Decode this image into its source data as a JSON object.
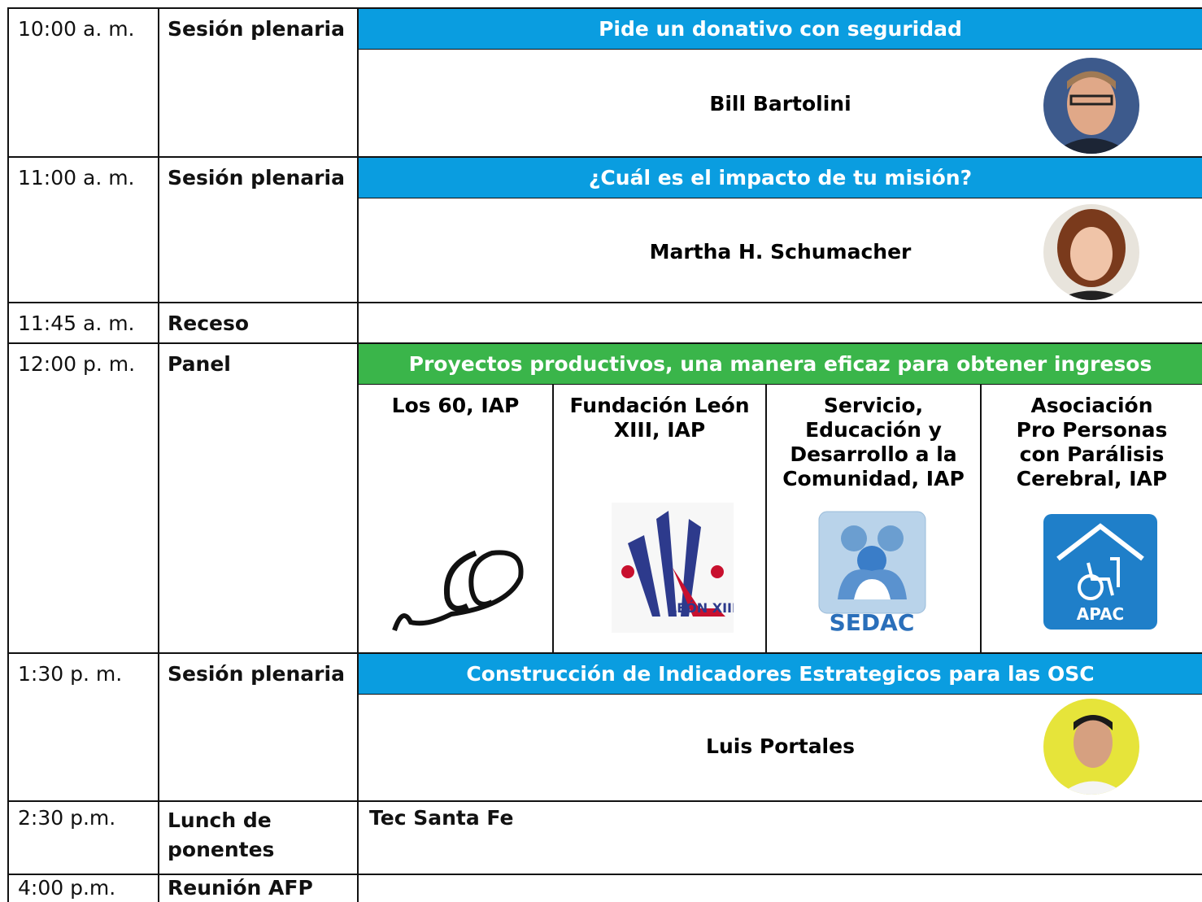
{
  "schedule": [
    {
      "time": "10:00 a. m.",
      "session": "Sesión plenaria",
      "title": "Pide un donativo con seguridad",
      "speaker": "Bill Bartolini"
    },
    {
      "time": "11:00 a. m.",
      "session": "Sesión plenaria",
      "title": "¿Cuál es el impacto de tu misión?",
      "speaker": "Martha H. Schumacher"
    },
    {
      "time": "11:45 a. m.",
      "session": "Receso"
    },
    {
      "time": "12:00 p. m.",
      "session": "Panel",
      "title": "Proyectos productivos, una manera eficaz para obtener ingresos",
      "panelists": [
        {
          "name": "Los 60, IAP"
        },
        {
          "name": "Fundación León XIII, IAP",
          "logo_text": "LEÓN XIII"
        },
        {
          "name": "Servicio, Educación y Desarrollo a la Comunidad, IAP",
          "logo_text": "SEDAC"
        },
        {
          "name": "Asociación Pro Personas con Parálisis Cerebral, IAP",
          "logo_text": "APAC"
        }
      ]
    },
    {
      "time": "1:30 p. m.",
      "session": "Sesión plenaria",
      "title": "Construcción de Indicadores Estrategicos para las OSC",
      "speaker": "Luis Portales"
    },
    {
      "time": "2:30 p.m.",
      "session": "Lunch de ponentes",
      "location": "Tec Santa Fe"
    },
    {
      "time": "4:00 p.m.",
      "session": "Reunión AFP"
    }
  ]
}
